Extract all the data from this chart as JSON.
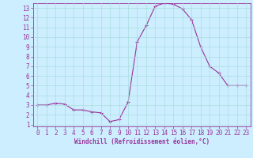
{
  "x": [
    0,
    1,
    2,
    3,
    4,
    5,
    6,
    7,
    8,
    9,
    10,
    11,
    12,
    13,
    14,
    15,
    16,
    17,
    18,
    19,
    20,
    21,
    22,
    23
  ],
  "y": [
    3.0,
    3.0,
    3.2,
    3.1,
    2.5,
    2.5,
    2.3,
    2.2,
    1.3,
    1.5,
    3.3,
    9.5,
    11.2,
    13.2,
    13.5,
    13.4,
    12.9,
    11.8,
    9.0,
    7.0,
    6.3,
    5.0,
    5.0,
    5.0
  ],
  "line_color": "#993399",
  "marker": "+",
  "marker_size": 3,
  "background_color": "#cceeff",
  "grid_color": "#aadddd",
  "xlabel": "Windchill (Refroidissement éolien,°C)",
  "xlabel_color": "#993399",
  "tick_color": "#993399",
  "xlim": [
    -0.5,
    23.5
  ],
  "ylim": [
    0.8,
    13.5
  ],
  "yticks": [
    1,
    2,
    3,
    4,
    5,
    6,
    7,
    8,
    9,
    10,
    11,
    12,
    13
  ],
  "xticks": [
    0,
    1,
    2,
    3,
    4,
    5,
    6,
    7,
    8,
    9,
    10,
    11,
    12,
    13,
    14,
    15,
    16,
    17,
    18,
    19,
    20,
    21,
    22,
    23
  ],
  "tick_fontsize": 5.5,
  "xlabel_fontsize": 5.5
}
